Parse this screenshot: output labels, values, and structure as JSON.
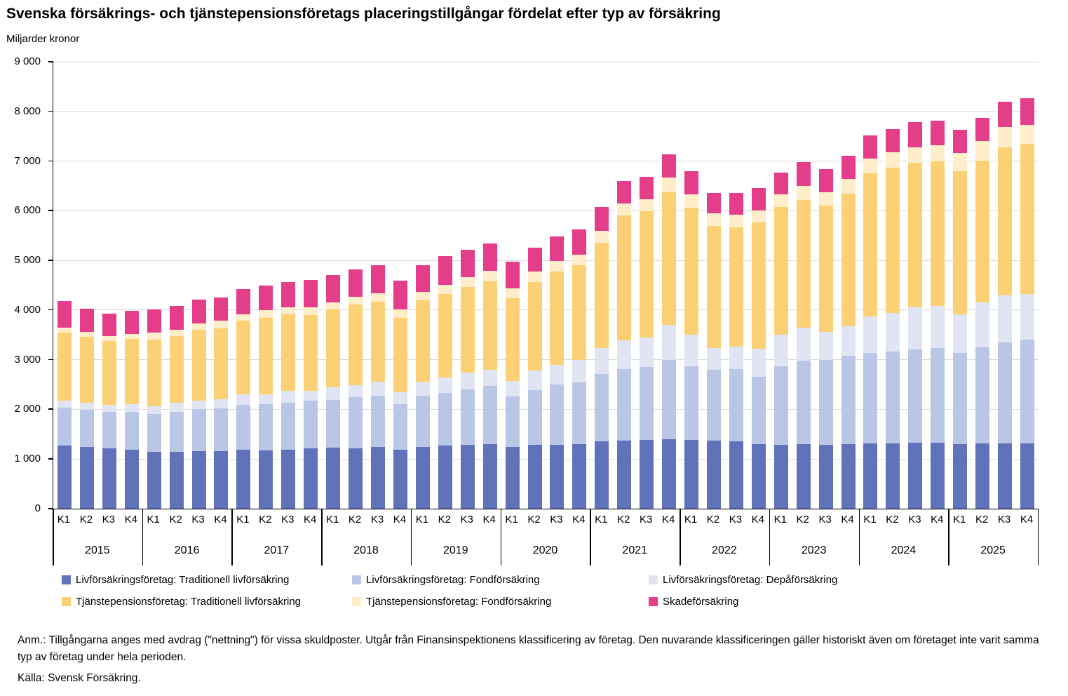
{
  "title": "Svenska försäkrings- och tjänstepensionsföretags placeringstillgångar fördelat efter typ av försäkring",
  "subtitle": "Miljarder kronor",
  "y_axis": {
    "tick_labels": [
      "0",
      "1 000",
      "2 000",
      "3 000",
      "4 000",
      "5 000",
      "6 000",
      "7 000",
      "8 000",
      "9 000"
    ],
    "max": 9000,
    "step": 1000
  },
  "x_axis": {
    "quarters": [
      "K1",
      "K2",
      "K3",
      "K4"
    ],
    "years": [
      "2015",
      "2016",
      "2017",
      "2018",
      "2019",
      "2020",
      "2021",
      "2022",
      "2023",
      "2024",
      "2025"
    ]
  },
  "footnote": "Anm.: Tillgångarna anges med avdrag (\"nettning\") för vissa skuldposter. Utgår från Finansinspektionens klassificering av företag. Den nuvarande  klassificeringen gäller historiskt även om företaget inte varit samma typ av företag under hela perioden.",
  "source": "Källa: Svensk Försäkring.",
  "colors": {
    "grid": "#D9D9D9",
    "axis": "#000000"
  },
  "chart_data": {
    "type": "bar",
    "stacked": true,
    "title": "Svenska försäkrings- och tjänstepensionsföretags placeringstillgångar fördelat efter typ av försäkring",
    "ylabel": "Miljarder kronor",
    "ylim": [
      0,
      9000
    ],
    "grid": true,
    "legend_position": "bottom",
    "categories": [
      "2015 K1",
      "2015 K2",
      "2015 K3",
      "2015 K4",
      "2016 K1",
      "2016 K2",
      "2016 K3",
      "2016 K4",
      "2017 K1",
      "2017 K2",
      "2017 K3",
      "2017 K4",
      "2018 K1",
      "2018 K2",
      "2018 K3",
      "2018 K4",
      "2019 K1",
      "2019 K2",
      "2019 K3",
      "2019 K4",
      "2020 K1",
      "2020 K2",
      "2020 K3",
      "2020 K4",
      "2021 K1",
      "2021 K2",
      "2021 K3",
      "2021 K4",
      "2022 K1",
      "2022 K2",
      "2022 K3",
      "2022 K4",
      "2023 K1",
      "2023 K2",
      "2023 K3",
      "2023 K4",
      "2024 K1",
      "2024 K2",
      "2024 K3",
      "2024 K4",
      "2025 K1",
      "2025 K2",
      "2025 K3",
      "2025 K4"
    ],
    "series": [
      {
        "name": "Livförsäkringsföretag: Traditionell livförsäkring",
        "color": "#6073BA",
        "values": [
          1270,
          1250,
          1220,
          1180,
          1140,
          1150,
          1160,
          1160,
          1180,
          1170,
          1190,
          1220,
          1230,
          1220,
          1240,
          1190,
          1240,
          1270,
          1290,
          1300,
          1250,
          1290,
          1290,
          1300,
          1350,
          1370,
          1380,
          1400,
          1390,
          1370,
          1360,
          1300,
          1290,
          1300,
          1290,
          1300,
          1310,
          1320,
          1330,
          1330,
          1300,
          1310,
          1320,
          1320
        ]
      },
      {
        "name": "Livförsäkringsföretag: Fondförsäkring",
        "color": "#B9C6E6",
        "values": [
          760,
          740,
          730,
          770,
          770,
          800,
          840,
          860,
          910,
          940,
          940,
          950,
          960,
          1020,
          1030,
          910,
          1030,
          1060,
          1110,
          1170,
          1010,
          1100,
          1210,
          1240,
          1360,
          1440,
          1470,
          1600,
          1480,
          1430,
          1450,
          1350,
          1580,
          1680,
          1700,
          1780,
          1830,
          1850,
          1880,
          1910,
          1840,
          1940,
          2030,
          2080
        ]
      },
      {
        "name": "Livförsäkringsföretag: Depåförsäkring",
        "color": "#E1E4F2",
        "values": [
          140,
          140,
          140,
          150,
          160,
          180,
          180,
          180,
          210,
          200,
          240,
          210,
          250,
          250,
          290,
          240,
          290,
          310,
          340,
          330,
          310,
          390,
          400,
          450,
          530,
          580,
          600,
          700,
          640,
          440,
          460,
          570,
          640,
          660,
          570,
          590,
          730,
          770,
          850,
          850,
          780,
          900,
          940,
          930
        ]
      },
      {
        "name": "Tjänstepensionsföretag: Traditionell livförsäkring",
        "color": "#FCD175",
        "values": [
          1370,
          1330,
          1290,
          1320,
          1340,
          1350,
          1420,
          1430,
          1490,
          1540,
          1540,
          1520,
          1570,
          1620,
          1610,
          1500,
          1630,
          1690,
          1720,
          1780,
          1670,
          1790,
          1880,
          1910,
          2120,
          2520,
          2540,
          2670,
          2550,
          2460,
          2400,
          2540,
          2560,
          2580,
          2550,
          2680,
          2880,
          2930,
          2900,
          2910,
          2880,
          2860,
          2990,
          3020
        ]
      },
      {
        "name": "Tjänstepensionsföretag: Fondförsäkring",
        "color": "#FDEEC9",
        "values": [
          100,
          100,
          100,
          100,
          130,
          130,
          130,
          150,
          120,
          150,
          150,
          160,
          150,
          160,
          170,
          170,
          170,
          180,
          200,
          210,
          190,
          210,
          210,
          220,
          230,
          230,
          240,
          300,
          270,
          250,
          250,
          250,
          260,
          280,
          260,
          290,
          300,
          310,
          320,
          320,
          370,
          390,
          400,
          380
        ]
      },
      {
        "name": "Skadeförsäkring",
        "color": "#E43D8A",
        "values": [
          540,
          470,
          450,
          470,
          470,
          470,
          480,
          470,
          510,
          490,
          510,
          540,
          550,
          550,
          560,
          580,
          550,
          570,
          550,
          550,
          540,
          480,
          490,
          500,
          480,
          460,
          460,
          460,
          470,
          410,
          440,
          450,
          440,
          480,
          470,
          470,
          470,
          470,
          500,
          500,
          460,
          470,
          520,
          530
        ]
      }
    ]
  }
}
